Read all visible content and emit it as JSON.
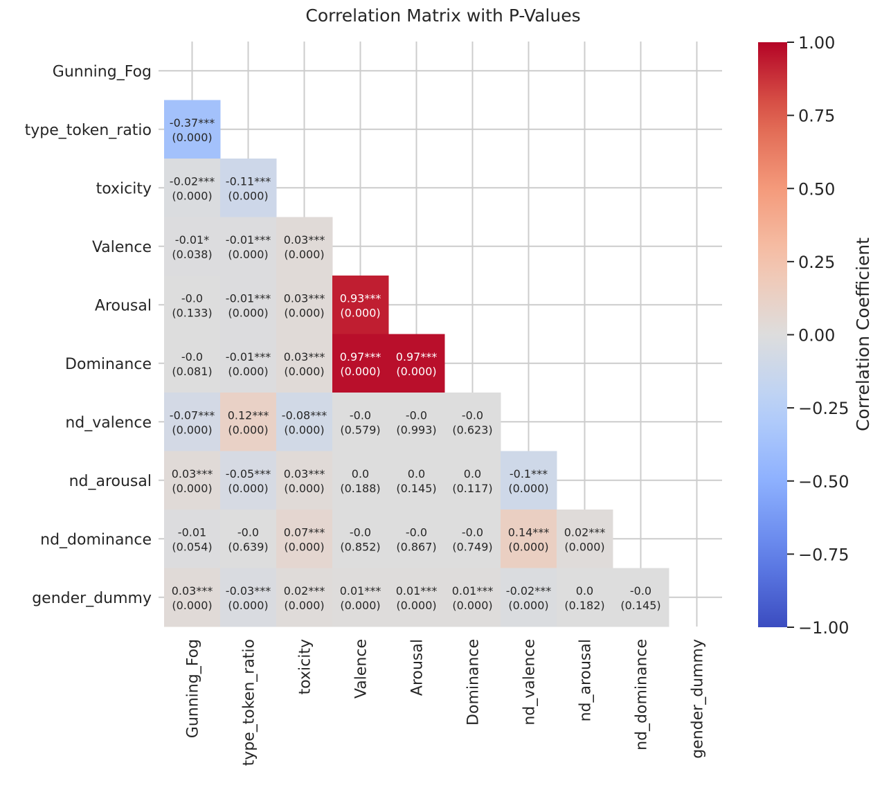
{
  "chart_data": {
    "type": "heatmap",
    "title": "Correlation Matrix with P-Values",
    "variables": [
      "Gunning_Fog",
      "type_token_ratio",
      "toxicity",
      "Valence",
      "Arousal",
      "Dominance",
      "nd_valence",
      "nd_arousal",
      "nd_dominance",
      "gender_dummy"
    ],
    "mask": "upper-triangle-and-diagonal",
    "cells": [
      {
        "row": 1,
        "col": 0,
        "r": -0.37,
        "label": "-0.37***",
        "p": "(0.000)"
      },
      {
        "row": 2,
        "col": 0,
        "r": -0.02,
        "label": "-0.02***",
        "p": "(0.000)"
      },
      {
        "row": 2,
        "col": 1,
        "r": -0.11,
        "label": "-0.11***",
        "p": "(0.000)"
      },
      {
        "row": 3,
        "col": 0,
        "r": -0.01,
        "label": "-0.01*",
        "p": "(0.038)"
      },
      {
        "row": 3,
        "col": 1,
        "r": -0.01,
        "label": "-0.01***",
        "p": "(0.000)"
      },
      {
        "row": 3,
        "col": 2,
        "r": 0.03,
        "label": "0.03***",
        "p": "(0.000)"
      },
      {
        "row": 4,
        "col": 0,
        "r": 0.0,
        "label": "-0.0",
        "p": "(0.133)"
      },
      {
        "row": 4,
        "col": 1,
        "r": -0.01,
        "label": "-0.01***",
        "p": "(0.000)"
      },
      {
        "row": 4,
        "col": 2,
        "r": 0.03,
        "label": "0.03***",
        "p": "(0.000)"
      },
      {
        "row": 4,
        "col": 3,
        "r": 0.93,
        "label": "0.93***",
        "p": "(0.000)"
      },
      {
        "row": 5,
        "col": 0,
        "r": 0.0,
        "label": "-0.0",
        "p": "(0.081)"
      },
      {
        "row": 5,
        "col": 1,
        "r": -0.01,
        "label": "-0.01***",
        "p": "(0.000)"
      },
      {
        "row": 5,
        "col": 2,
        "r": 0.03,
        "label": "0.03***",
        "p": "(0.000)"
      },
      {
        "row": 5,
        "col": 3,
        "r": 0.97,
        "label": "0.97***",
        "p": "(0.000)"
      },
      {
        "row": 5,
        "col": 4,
        "r": 0.97,
        "label": "0.97***",
        "p": "(0.000)"
      },
      {
        "row": 6,
        "col": 0,
        "r": -0.07,
        "label": "-0.07***",
        "p": "(0.000)"
      },
      {
        "row": 6,
        "col": 1,
        "r": 0.12,
        "label": "0.12***",
        "p": "(0.000)"
      },
      {
        "row": 6,
        "col": 2,
        "r": -0.08,
        "label": "-0.08***",
        "p": "(0.000)"
      },
      {
        "row": 6,
        "col": 3,
        "r": 0.0,
        "label": "-0.0",
        "p": "(0.579)"
      },
      {
        "row": 6,
        "col": 4,
        "r": 0.0,
        "label": "-0.0",
        "p": "(0.993)"
      },
      {
        "row": 6,
        "col": 5,
        "r": 0.0,
        "label": "-0.0",
        "p": "(0.623)"
      },
      {
        "row": 7,
        "col": 0,
        "r": 0.03,
        "label": "0.03***",
        "p": "(0.000)"
      },
      {
        "row": 7,
        "col": 1,
        "r": -0.05,
        "label": "-0.05***",
        "p": "(0.000)"
      },
      {
        "row": 7,
        "col": 2,
        "r": 0.03,
        "label": "0.03***",
        "p": "(0.000)"
      },
      {
        "row": 7,
        "col": 3,
        "r": 0.0,
        "label": "0.0",
        "p": "(0.188)"
      },
      {
        "row": 7,
        "col": 4,
        "r": 0.0,
        "label": "0.0",
        "p": "(0.145)"
      },
      {
        "row": 7,
        "col": 5,
        "r": 0.0,
        "label": "0.0",
        "p": "(0.117)"
      },
      {
        "row": 7,
        "col": 6,
        "r": -0.1,
        "label": "-0.1***",
        "p": "(0.000)"
      },
      {
        "row": 8,
        "col": 0,
        "r": -0.01,
        "label": "-0.01",
        "p": "(0.054)"
      },
      {
        "row": 8,
        "col": 1,
        "r": 0.0,
        "label": "-0.0",
        "p": "(0.639)"
      },
      {
        "row": 8,
        "col": 2,
        "r": 0.07,
        "label": "0.07***",
        "p": "(0.000)"
      },
      {
        "row": 8,
        "col": 3,
        "r": 0.0,
        "label": "-0.0",
        "p": "(0.852)"
      },
      {
        "row": 8,
        "col": 4,
        "r": 0.0,
        "label": "-0.0",
        "p": "(0.867)"
      },
      {
        "row": 8,
        "col": 5,
        "r": 0.0,
        "label": "-0.0",
        "p": "(0.749)"
      },
      {
        "row": 8,
        "col": 6,
        "r": 0.14,
        "label": "0.14***",
        "p": "(0.000)"
      },
      {
        "row": 8,
        "col": 7,
        "r": 0.02,
        "label": "0.02***",
        "p": "(0.000)"
      },
      {
        "row": 9,
        "col": 0,
        "r": 0.03,
        "label": "0.03***",
        "p": "(0.000)"
      },
      {
        "row": 9,
        "col": 1,
        "r": -0.03,
        "label": "-0.03***",
        "p": "(0.000)"
      },
      {
        "row": 9,
        "col": 2,
        "r": 0.02,
        "label": "0.02***",
        "p": "(0.000)"
      },
      {
        "row": 9,
        "col": 3,
        "r": 0.01,
        "label": "0.01***",
        "p": "(0.000)"
      },
      {
        "row": 9,
        "col": 4,
        "r": 0.01,
        "label": "0.01***",
        "p": "(0.000)"
      },
      {
        "row": 9,
        "col": 5,
        "r": 0.01,
        "label": "0.01***",
        "p": "(0.000)"
      },
      {
        "row": 9,
        "col": 6,
        "r": -0.02,
        "label": "-0.02***",
        "p": "(0.000)"
      },
      {
        "row": 9,
        "col": 7,
        "r": 0.0,
        "label": "0.0",
        "p": "(0.182)"
      },
      {
        "row": 9,
        "col": 8,
        "r": 0.0,
        "label": "-0.0",
        "p": "(0.145)"
      }
    ],
    "colorbar": {
      "label": "Correlation Coefficient",
      "colormap": "coolwarm",
      "range": [
        -1.0,
        1.0
      ],
      "ticks": [
        -1.0,
        -0.75,
        -0.5,
        -0.25,
        0.0,
        0.25,
        0.5,
        0.75,
        1.0
      ],
      "tick_labels": [
        "−1.00",
        "−0.75",
        "−0.50",
        "−0.25",
        "0.00",
        "0.25",
        "0.50",
        "0.75",
        "1.00"
      ]
    },
    "grid": true
  }
}
